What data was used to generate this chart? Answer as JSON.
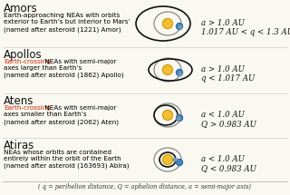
{
  "groups": [
    {
      "name": "Amors",
      "desc_parts": [
        {
          "text": "Earth-approaching NEAs with orbits\nexterior to Earth’s but interior to Mars’\n(named after asteroid (1221) Amor)",
          "color": "#000000",
          "prefix": false
        }
      ],
      "formula_line1": "a > 1.0 AU",
      "formula_line2": "1.017 AU < q < 1.3 AU",
      "orbit_type": "amors"
    },
    {
      "name": "Apollos",
      "desc_parts": [
        {
          "text": "Earth-crossing",
          "color": "#cc2200",
          "prefix": true
        },
        {
          "text": " NEAs with semi-major\naxes larger than Earth’s\n(named after asteroid (1862) Apollo)",
          "color": "#000000",
          "prefix": false
        }
      ],
      "formula_line1": "a > 1.0 AU",
      "formula_line2": "q < 1.017 AU",
      "orbit_type": "apollos"
    },
    {
      "name": "Atens",
      "desc_parts": [
        {
          "text": "Earth-crossing",
          "color": "#cc2200",
          "prefix": true
        },
        {
          "text": " NEAs with semi-major\naxes smaller than Earth’s\n(named after asteroid (2062) Aten)",
          "color": "#000000",
          "prefix": false
        }
      ],
      "formula_line1": "a < 1.0 AU",
      "formula_line2": "Q > 0.983 AU",
      "orbit_type": "atens"
    },
    {
      "name": "Atiras",
      "desc_parts": [
        {
          "text": "NEAs whose orbits are contained\nentirely within the orbit of the Earth\n(named after asteroid (163693) Abira)",
          "color": "#000000",
          "prefix": false
        }
      ],
      "formula_line1": "a < 1.0 AU",
      "formula_line2": "Q < 0.983 AU",
      "orbit_type": "atiras"
    }
  ],
  "footer": "( q = perihelion distance, Q = aphelion distance, a = semi-major axis)",
  "bg_color": "#f9f9f2",
  "sun_color": "#f0c030",
  "sun_edge_color": "#c89010",
  "earth_color": "#4488bb",
  "earth_edge_color": "#2255aa",
  "orbit_earth_color": "#888888",
  "orbit_ast_color": "#111111",
  "asteroid_color": "#7799aa"
}
